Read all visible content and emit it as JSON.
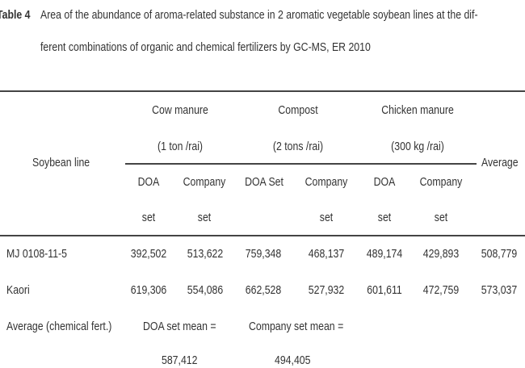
{
  "caption": {
    "label": "Table 4",
    "line1": "Area of the abundance of aroma-related substance in 2 aromatic vegetable soybean lines at the dif-",
    "line2": "ferent combinations of organic and chemical fertilizers by GC-MS, ER 2010"
  },
  "header": {
    "row_label": "Soybean line",
    "average": "Average",
    "groups": [
      {
        "name": "Cow manure",
        "rate": "(1 ton /rai)"
      },
      {
        "name": "Compost",
        "rate": "(2 tons /rai)"
      },
      {
        "name": "Chicken manure",
        "rate": "(300 kg /rai)"
      }
    ],
    "subcols": [
      {
        "l1": "DOA",
        "l2": "set"
      },
      {
        "l1": "Company",
        "l2": "set"
      },
      {
        "l1": "DOA Set",
        "l2": ""
      },
      {
        "l1": "Company",
        "l2": "set"
      },
      {
        "l1": "DOA",
        "l2": "set"
      },
      {
        "l1": "Company",
        "l2": "set"
      }
    ]
  },
  "rows": [
    {
      "line": "MJ 0108-11-5",
      "values": [
        "392,502",
        "513,622",
        "759,348",
        "468,137",
        "489,174",
        "429,893"
      ],
      "average": "508,779"
    },
    {
      "line": "Kaori",
      "values": [
        "619,306",
        "554,086",
        "662,528",
        "527,932",
        "601,611",
        "472,759"
      ],
      "average": "573,037"
    }
  ],
  "footer": {
    "label": "Average (chemical fert.)",
    "doa_label": "DOA set mean =",
    "doa_value": "587,412",
    "company_label": "Company set mean =",
    "company_value": "494,405"
  }
}
